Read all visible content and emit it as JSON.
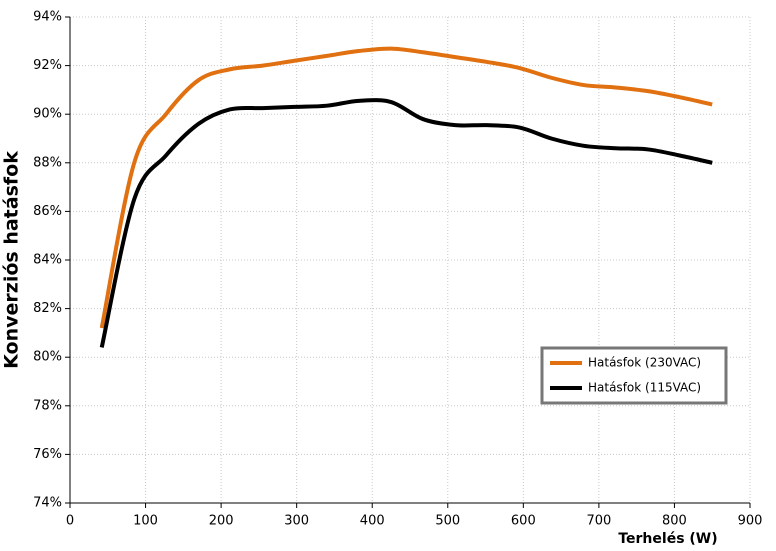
{
  "chart_data": {
    "type": "line",
    "x_label": "Terhelés (W)",
    "y_label": "Konverziós hatásfok",
    "x": [
      42,
      85,
      127,
      170,
      212,
      255,
      297,
      340,
      382,
      425,
      467,
      510,
      552,
      595,
      637,
      680,
      722,
      765,
      807,
      850
    ],
    "series": [
      {
        "name": "Hatásfok (230VAC)",
        "color": "#e07010",
        "values": [
          81.2,
          88.0,
          90.0,
          91.4,
          91.85,
          92.0,
          92.2,
          92.4,
          92.6,
          92.7,
          92.55,
          92.35,
          92.15,
          91.9,
          91.5,
          91.2,
          91.1,
          90.95,
          90.7,
          90.4
        ]
      },
      {
        "name": "Hatásfok (115VAC)",
        "color": "#000000",
        "values": [
          80.4,
          86.5,
          88.3,
          89.6,
          90.2,
          90.25,
          90.3,
          90.35,
          90.55,
          90.5,
          89.8,
          89.55,
          89.55,
          89.45,
          89.0,
          88.7,
          88.6,
          88.55,
          88.3,
          88.0
        ]
      }
    ],
    "xlim": [
      0,
      900
    ],
    "xticks": [
      0,
      100,
      200,
      300,
      400,
      500,
      600,
      700,
      800,
      900
    ],
    "ylim": [
      74,
      94
    ],
    "yticks": [
      {
        "value": 74,
        "label": "74%"
      },
      {
        "value": 76,
        "label": "76%"
      },
      {
        "value": 78,
        "label": "78%"
      },
      {
        "value": 80,
        "label": "80%"
      },
      {
        "value": 82,
        "label": "82%"
      },
      {
        "value": 84,
        "label": "84%"
      },
      {
        "value": 86,
        "label": "86%"
      },
      {
        "value": 88,
        "label": "88%"
      },
      {
        "value": 90,
        "label": "90%"
      },
      {
        "value": 92,
        "label": "92%"
      },
      {
        "value": 94,
        "label": "94%"
      }
    ],
    "grid": true,
    "legend": "right"
  }
}
